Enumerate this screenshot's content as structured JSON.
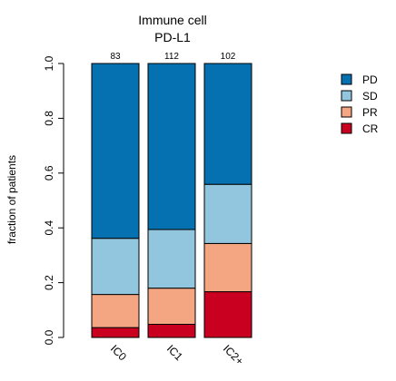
{
  "chart_data": {
    "type": "bar",
    "stacked": true,
    "title_line1": "Immune cell",
    "title_line2": "PD-L1",
    "xlabel": "",
    "ylabel": "fraction of patients",
    "ylim": [
      0,
      1
    ],
    "yticks": [
      "0.0",
      "0.2",
      "0.4",
      "0.6",
      "0.8",
      "1.0"
    ],
    "categories": [
      "IC0",
      "IC1",
      "IC2+"
    ],
    "counts": [
      "83",
      "112",
      "102"
    ],
    "series": [
      {
        "name": "CR",
        "color": "#ca0020",
        "values": [
          0.036,
          0.048,
          0.167
        ]
      },
      {
        "name": "PR",
        "color": "#f4a582",
        "values": [
          0.121,
          0.132,
          0.176
        ]
      },
      {
        "name": "SD",
        "color": "#92c5de",
        "values": [
          0.205,
          0.214,
          0.216
        ]
      },
      {
        "name": "PD",
        "color": "#0571b0",
        "values": [
          0.638,
          0.606,
          0.441
        ]
      }
    ],
    "legend_order": [
      "PD",
      "SD",
      "PR",
      "CR"
    ],
    "legend_position": "right",
    "grid": false
  }
}
